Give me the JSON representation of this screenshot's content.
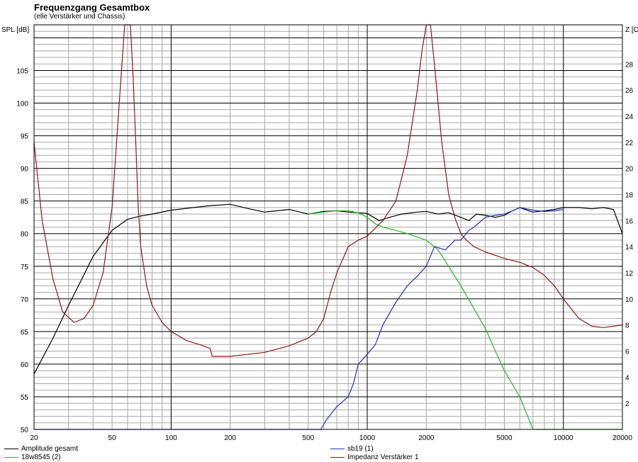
{
  "chart_data": {
    "type": "line",
    "title": "Frequenzgang Gesamtbox",
    "subtitle": "(elle Verstärker und Chassis)",
    "ylabel_left": "SPL [dB]",
    "ylabel_right": "Z [O",
    "x_scale": "log",
    "xlim": [
      20,
      20000
    ],
    "ylim_left": [
      50,
      112
    ],
    "ylim_right": [
      0,
      31
    ],
    "x_ticks": [
      20,
      50,
      100,
      200,
      500,
      1000,
      2000,
      5000,
      10000,
      20000
    ],
    "y_ticks_left": [
      50,
      55,
      60,
      65,
      70,
      75,
      80,
      85,
      90,
      95,
      100,
      105
    ],
    "y_ticks_right": [
      2,
      4,
      6,
      8,
      10,
      12,
      14,
      16,
      18,
      20,
      22,
      24,
      26,
      28
    ],
    "grid": true,
    "series": [
      {
        "name": "Amplitude gesamt",
        "color": "#000000",
        "axis": "left",
        "x": [
          20,
          25,
          30,
          35,
          40,
          50,
          60,
          70,
          80,
          100,
          130,
          160,
          200,
          250,
          300,
          400,
          500,
          600,
          700,
          800,
          900,
          1000,
          1150,
          1300,
          1500,
          1800,
          2000,
          2300,
          2600,
          3000,
          3300,
          3600,
          4000,
          4500,
          5000,
          5500,
          6000,
          6500,
          7000,
          8000,
          9000,
          10000,
          12000,
          14000,
          16000,
          18000,
          20000
        ],
        "y": [
          58.5,
          64,
          69,
          73,
          76.5,
          80.5,
          82.2,
          82.7,
          83,
          83.6,
          84,
          84.3,
          84.5,
          83.8,
          83.3,
          83.7,
          83,
          83.4,
          83.5,
          83.3,
          83.2,
          83.1,
          82,
          82.5,
          83,
          83.3,
          83.4,
          83,
          83.2,
          82.5,
          82,
          83,
          82.8,
          82.5,
          82.8,
          83.5,
          84,
          83.6,
          83.3,
          83.5,
          83.7,
          84,
          84,
          83.8,
          84,
          83.7,
          80
        ]
      },
      {
        "name": "18w8545 (2)",
        "color": "#22bb22",
        "axis": "left",
        "x": [
          500,
          600,
          700,
          800,
          900,
          1000,
          1100,
          1200,
          1400,
          1600,
          2000,
          2300,
          2600,
          3000,
          3500,
          4000,
          4500,
          5000,
          6000,
          7000,
          7500,
          10000,
          15000,
          20000
        ],
        "y": [
          83,
          83.3,
          83.5,
          83.5,
          83.2,
          82.5,
          81.5,
          81,
          80.5,
          80,
          79,
          77.5,
          75,
          72,
          68.5,
          65.5,
          62,
          59,
          55,
          50,
          50,
          50,
          50,
          50
        ]
      },
      {
        "name": "sb19 (1)",
        "color": "#2233bb",
        "axis": "left",
        "x": [
          20,
          580,
          620,
          700,
          800,
          850,
          900,
          1000,
          1100,
          1200,
          1400,
          1600,
          1800,
          2000,
          2200,
          2500,
          2800,
          3000,
          3300,
          3500,
          4000,
          4500,
          5000,
          5500,
          6000,
          7000,
          8000,
          9000,
          10000
        ],
        "y": [
          50,
          50,
          51.5,
          53.5,
          55,
          57,
          60,
          61.5,
          63,
          66,
          69.5,
          72,
          73.5,
          75,
          78,
          77.5,
          79,
          79,
          80.5,
          81,
          82.5,
          82.8,
          83,
          83.5,
          84,
          83.6,
          83.4,
          83.5,
          83.7
        ]
      },
      {
        "name": "Impedanz Verstärker 1",
        "color": "#8b1a1a",
        "axis": "right",
        "x": [
          20,
          22,
          25,
          28,
          32,
          36,
          40,
          45,
          50,
          55,
          58,
          60,
          62,
          64,
          66,
          68,
          70,
          75,
          80,
          90,
          100,
          120,
          140,
          158,
          162,
          200,
          300,
          400,
          500,
          550,
          600,
          650,
          700,
          800,
          900,
          1000,
          1200,
          1400,
          1600,
          1800,
          1900,
          2000,
          2100,
          2200,
          2400,
          2600,
          2800,
          3000,
          3200,
          3500,
          4000,
          5000,
          6000,
          7000,
          8000,
          9000,
          10000,
          12000,
          14000,
          16000,
          20000
        ],
        "y": [
          22,
          16,
          11.5,
          9,
          8.2,
          8.5,
          9.5,
          12,
          17,
          26,
          31,
          31,
          31,
          27,
          22,
          17,
          14,
          11,
          9.5,
          8.2,
          7.5,
          6.8,
          6.5,
          6.2,
          5.6,
          5.6,
          5.9,
          6.4,
          7,
          7.5,
          8.5,
          10.5,
          12,
          14,
          14.5,
          14.8,
          16,
          17.5,
          21,
          26,
          29,
          31,
          31,
          28,
          22,
          18,
          16.2,
          15,
          14.5,
          14,
          13.6,
          13.1,
          12.8,
          12.4,
          11.8,
          11,
          10,
          8.5,
          7.9,
          7.8,
          8
        ]
      }
    ]
  },
  "legend": {
    "amplitude": "Amplitude gesamt",
    "tieftoener": "18w8545 (2)",
    "hochtoener": "sb19 (1)",
    "impedanz": "Impedanz Verstärker 1"
  }
}
